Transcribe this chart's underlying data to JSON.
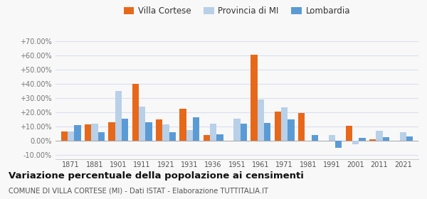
{
  "years": [
    1871,
    1881,
    1901,
    1911,
    1921,
    1931,
    1936,
    1951,
    1961,
    1971,
    1981,
    1991,
    2001,
    2011,
    2021
  ],
  "villa_cortese": [
    6.5,
    11.5,
    13.0,
    40.0,
    15.0,
    22.5,
    4.0,
    0.2,
    60.5,
    20.5,
    19.5,
    null,
    10.5,
    1.0,
    null
  ],
  "provincia_mi": [
    6.5,
    12.0,
    35.0,
    24.0,
    11.5,
    7.5,
    12.0,
    15.5,
    29.0,
    23.5,
    null,
    4.0,
    -2.5,
    7.0,
    6.0
  ],
  "lombardia": [
    11.0,
    6.0,
    15.5,
    13.0,
    6.0,
    16.5,
    4.5,
    12.0,
    12.5,
    15.0,
    4.0,
    -5.0,
    2.0,
    2.5,
    3.0
  ],
  "color_villa": "#e8681a",
  "color_provincia": "#b8d0e8",
  "color_lombardia": "#5b9bd5",
  "title": "Variazione percentuale della popolazione ai censimenti",
  "subtitle": "COMUNE DI VILLA CORTESE (MI) - Dati ISTAT - Elaborazione TUTTITALIA.IT",
  "legend_labels": [
    "Villa Cortese",
    "Provincia di MI",
    "Lombardia"
  ],
  "ylim": [
    -13,
    74
  ],
  "yticks": [
    -10,
    0,
    10,
    20,
    30,
    40,
    50,
    60,
    70
  ],
  "grid_color": "#d8dff0",
  "background_color": "#f8f8f8"
}
